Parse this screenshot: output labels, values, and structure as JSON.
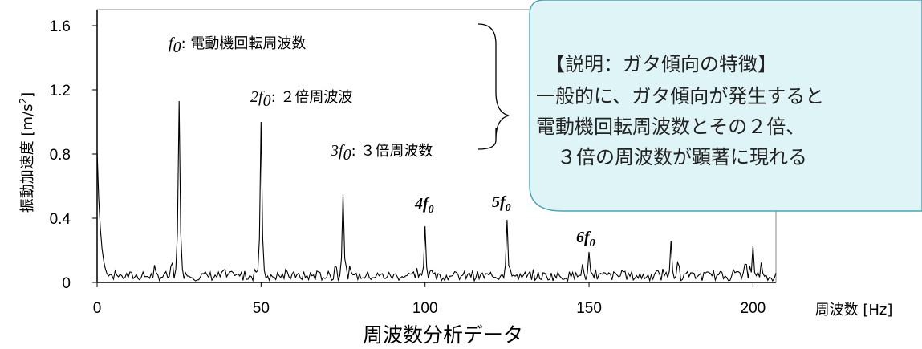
{
  "chart_data": {
    "type": "line",
    "title": "周波数分析データ",
    "xlabel": "周波数  [Hz]",
    "ylabel": "振動加速度  [m/s",
    "ylabel_sup": "2",
    "ylabel_close": "]",
    "xlim": [
      0,
      207
    ],
    "ylim": [
      0,
      1.7
    ],
    "xticks": [
      "0",
      "50",
      "100",
      "150",
      "200"
    ],
    "xtick_values": [
      0,
      50,
      100,
      150,
      200
    ],
    "yticks": [
      "0",
      "0.4",
      "0.8",
      "1.2",
      "1.6"
    ],
    "ytick_values": [
      0,
      0.4,
      0.8,
      1.2,
      1.6
    ],
    "grid": false,
    "line_color": "#000000",
    "peaks": [
      {
        "x": 25,
        "y": 1.13
      },
      {
        "x": 50,
        "y": 1.0
      },
      {
        "x": 75,
        "y": 0.55
      },
      {
        "x": 100,
        "y": 0.35
      },
      {
        "x": 125,
        "y": 0.39
      },
      {
        "x": 150,
        "y": 0.19
      },
      {
        "x": 175,
        "y": 0.26
      },
      {
        "x": 200,
        "y": 0.23
      }
    ],
    "low_freq_start": {
      "x": 0,
      "y": 0.82
    },
    "annotations": [
      {
        "math": "f",
        "sub": "0",
        "text": ": 電動機回転周波数"
      },
      {
        "math": "2f",
        "sub": "0",
        "text": ": ２倍周波波"
      },
      {
        "math": "3f",
        "sub": "0",
        "text": ": ３倍周波数"
      }
    ],
    "peak_labels": [
      {
        "label": "4f",
        "sub": "0"
      },
      {
        "label": "5f",
        "sub": "0"
      },
      {
        "label": "6f",
        "sub": "0"
      }
    ]
  },
  "callout": {
    "fill": "#dff4f7",
    "stroke": "#4aa3b5",
    "lines": [
      "【説明：ガタ傾向の特徴】",
      "一般的に、ガタ傾向が発生すると",
      "電動機回転周波数とその２倍、",
      "３倍の周波数が顕著に現れる"
    ]
  }
}
